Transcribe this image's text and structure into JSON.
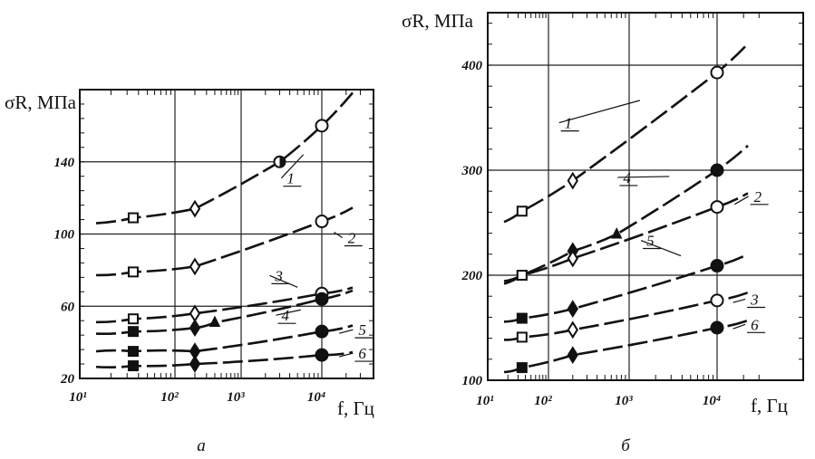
{
  "chart_data": [
    {
      "panel": "а",
      "type": "line",
      "ylabel": "σR, МПа",
      "xlabel": "f, Гц",
      "xscale": "log",
      "xlim": [
        10,
        30000
      ],
      "ylim": [
        20,
        180
      ],
      "xticks": [
        "10¹",
        "10²",
        "10³",
        "10⁴"
      ],
      "yticks": [
        20,
        60,
        100,
        140
      ],
      "grid": true,
      "series": [
        {
          "name": "1",
          "x": [
            35,
            200,
            3000,
            10000
          ],
          "y": [
            109,
            114,
            140,
            160
          ],
          "markers": [
            "square-open",
            "diamond-open",
            "circle-half",
            "circle-open"
          ],
          "label_at": [
            3500,
            128
          ]
        },
        {
          "name": "2",
          "x": [
            35,
            200,
            10000
          ],
          "y": [
            79,
            82,
            107
          ],
          "markers": [
            "square-open",
            "diamond-open",
            "circle-open"
          ],
          "label_at": [
            20000,
            95
          ]
        },
        {
          "name": "3",
          "x": [
            35,
            200,
            10000
          ],
          "y": [
            53,
            56,
            67
          ],
          "markers": [
            "square-open",
            "diamond-open",
            "circle-open"
          ],
          "label_at": [
            2500,
            74
          ]
        },
        {
          "name": "4",
          "x": [
            35,
            200,
            400,
            10000
          ],
          "y": [
            46,
            48,
            51,
            64
          ],
          "markers": [
            "square-filled",
            "diamond-filled",
            "triangle-filled",
            "circle-filled"
          ],
          "label_at": [
            3000,
            52
          ]
        },
        {
          "name": "5",
          "x": [
            35,
            200,
            10000
          ],
          "y": [
            35,
            35,
            46
          ],
          "markers": [
            "square-filled",
            "diamond-filled",
            "circle-filled"
          ],
          "label_at": [
            27000,
            44
          ]
        },
        {
          "name": "6",
          "x": [
            35,
            200,
            10000
          ],
          "y": [
            27,
            28,
            33
          ],
          "markers": [
            "square-filled",
            "diamond-filled",
            "circle-filled"
          ],
          "label_at": [
            27000,
            31
          ]
        }
      ]
    },
    {
      "panel": "б",
      "type": "line",
      "ylabel": "σR, МПа",
      "xlabel": "f, Гц",
      "xscale": "log",
      "xlim": [
        10,
        30000
      ],
      "ylim": [
        100,
        450
      ],
      "xticks": [
        "10¹",
        "10²",
        "10³",
        "10⁴"
      ],
      "yticks": [
        100,
        200,
        300,
        400
      ],
      "grid": true,
      "series": [
        {
          "name": "1",
          "x": [
            35,
            200,
            10000
          ],
          "y": [
            261,
            290,
            393
          ],
          "markers": [
            "square-open",
            "diamond-open",
            "circle-open"
          ],
          "label_at": [
            150,
            340
          ]
        },
        {
          "name": "4",
          "x": [
            35,
            200,
            700,
            10000
          ],
          "y": [
            200,
            223,
            239,
            300
          ],
          "markers": [
            "square-open",
            "diamond-filled",
            "triangle-filled",
            "circle-filled"
          ],
          "label_at": [
            800,
            288
          ]
        },
        {
          "name": "2",
          "x": [
            35,
            200,
            10000
          ],
          "y": [
            200,
            216,
            265
          ],
          "markers": [
            "square-open",
            "diamond-open",
            "circle-open"
          ],
          "label_at": [
            25000,
            270
          ]
        },
        {
          "name": "5",
          "x": [
            35,
            200,
            10000
          ],
          "y": [
            159,
            168,
            209
          ],
          "markers": [
            "square-filled",
            "diamond-filled",
            "circle-filled"
          ],
          "label_at": [
            1500,
            228
          ]
        },
        {
          "name": "3",
          "x": [
            35,
            200,
            10000
          ],
          "y": [
            141,
            148,
            176
          ],
          "markers": [
            "square-open",
            "diamond-open",
            "circle-open"
          ],
          "label_at": [
            23000,
            172
          ]
        },
        {
          "name": "6",
          "x": [
            35,
            200,
            10000
          ],
          "y": [
            112,
            124,
            150
          ],
          "markers": [
            "square-filled",
            "diamond-filled",
            "circle-filled"
          ],
          "label_at": [
            23000,
            148
          ]
        }
      ]
    }
  ]
}
